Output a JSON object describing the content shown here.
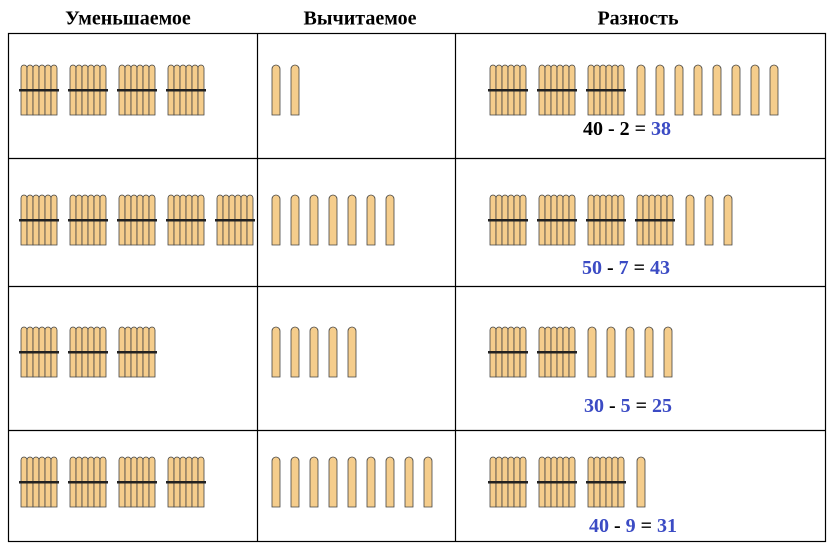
{
  "headers": [
    "Уменьшаемое",
    "Вычитаемое",
    "Разность"
  ],
  "minus": "-",
  "equals": "=",
  "stick_color": "#f5cd8c",
  "rows": [
    {
      "minuend": 40,
      "subtrahend": 2,
      "difference": 38,
      "colors": [
        "#000000",
        "#000000",
        "#3b4bc4"
      ]
    },
    {
      "minuend": 50,
      "subtrahend": 7,
      "difference": 43,
      "colors": [
        "#3b4bc4",
        "#3b4bc4",
        "#3b4bc4"
      ]
    },
    {
      "minuend": 30,
      "subtrahend": 5,
      "difference": 25,
      "colors": [
        "#3b4bc4",
        "#3b4bc4",
        "#3b4bc4"
      ]
    },
    {
      "minuend": 40,
      "subtrahend": 9,
      "difference": 31,
      "colors": [
        "#3b4bc4",
        "#3b4bc4",
        "#3b4bc4"
      ]
    }
  ]
}
